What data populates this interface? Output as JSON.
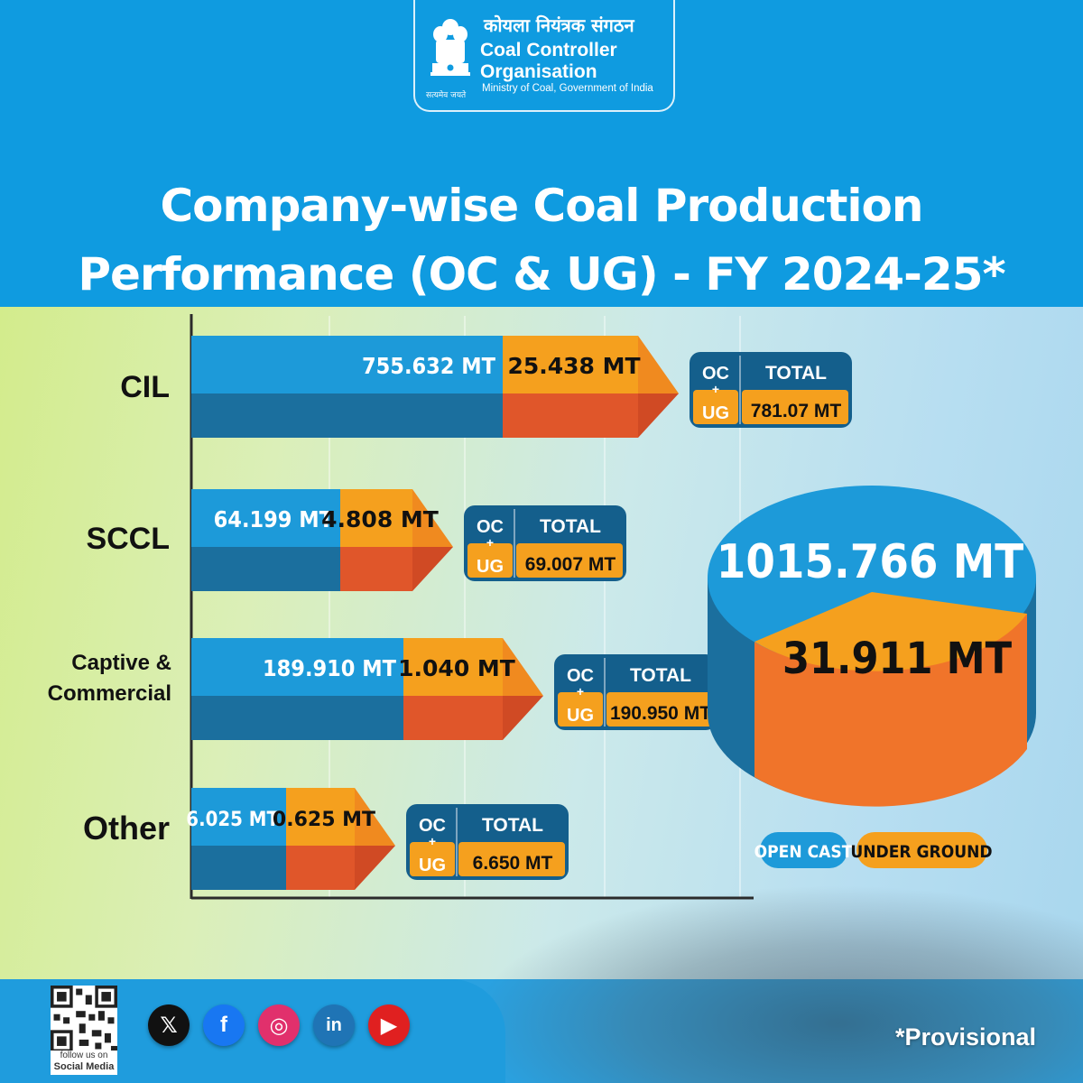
{
  "header": {
    "org_hindi": "कोयला नियंत्रक संगठन",
    "org_name": "Coal Controller Organisation",
    "org_sub": "Ministry of Coal, Government of India",
    "motto": "सत्यमेव जयते"
  },
  "title_line1": "Company-wise Coal Production",
  "title_line2": "Performance (OC & UG) - FY 2024-25*",
  "chart_data": {
    "type": "bar",
    "orientation": "horizontal",
    "stacked": true,
    "title": "Company-wise Coal Production Performance (OC & UG) - FY 2024-25*",
    "categories": [
      "CIL",
      "SCCL",
      "Captive & Commercial",
      "Other"
    ],
    "series": [
      {
        "name": "OPEN CAST",
        "values": [
          755.632,
          64.199,
          189.91,
          6.025
        ],
        "labels": [
          "755.632 MT",
          "64.199 MT",
          "189.910 MT",
          "6.025 MT"
        ],
        "color": "#1d9ad9"
      },
      {
        "name": "UNDER GROUND",
        "values": [
          25.438,
          4.808,
          1.04,
          0.625
        ],
        "labels": [
          "25.438 MT",
          "4.808 MT",
          "1.040 MT",
          "0.625 MT"
        ],
        "color": "#f5a01e"
      }
    ],
    "totals": [
      "781.07 MT",
      "69.007 MT",
      "190.950 MT",
      "6.650 MT"
    ],
    "total_box": {
      "oc": "OC",
      "plus": "+",
      "ug": "UG",
      "total": "TOTAL"
    },
    "pie": {
      "type": "pie",
      "open_cast_total": 1015.766,
      "open_cast_label": "1015.766 MT",
      "under_ground_total": 31.911,
      "under_ground_label": "31.911 MT"
    },
    "legend": [
      "OPEN CAST",
      "UNDER GROUND"
    ],
    "legend_position": "bottom-right",
    "grid": true
  },
  "footer": {
    "qr_caption_1": "follow us on",
    "qr_caption_2": "Social Media",
    "social": [
      {
        "name": "x-icon",
        "glyph": "𝕏",
        "color": "#111111"
      },
      {
        "name": "facebook-icon",
        "glyph": "f",
        "color": "#1877f2"
      },
      {
        "name": "instagram-icon",
        "glyph": "◎",
        "color": "#e1306c"
      },
      {
        "name": "linkedin-icon",
        "glyph": "in",
        "color": "#1f74b5"
      },
      {
        "name": "youtube-icon",
        "glyph": "▶",
        "color": "#e02020"
      }
    ],
    "provisional": "*Provisional"
  },
  "colors": {
    "oc": "#1d9ad9",
    "oc_dark": "#1b6f9e",
    "ug": "#f5a01e",
    "ug_dark": "#e0562a",
    "box": "#145f8c"
  }
}
